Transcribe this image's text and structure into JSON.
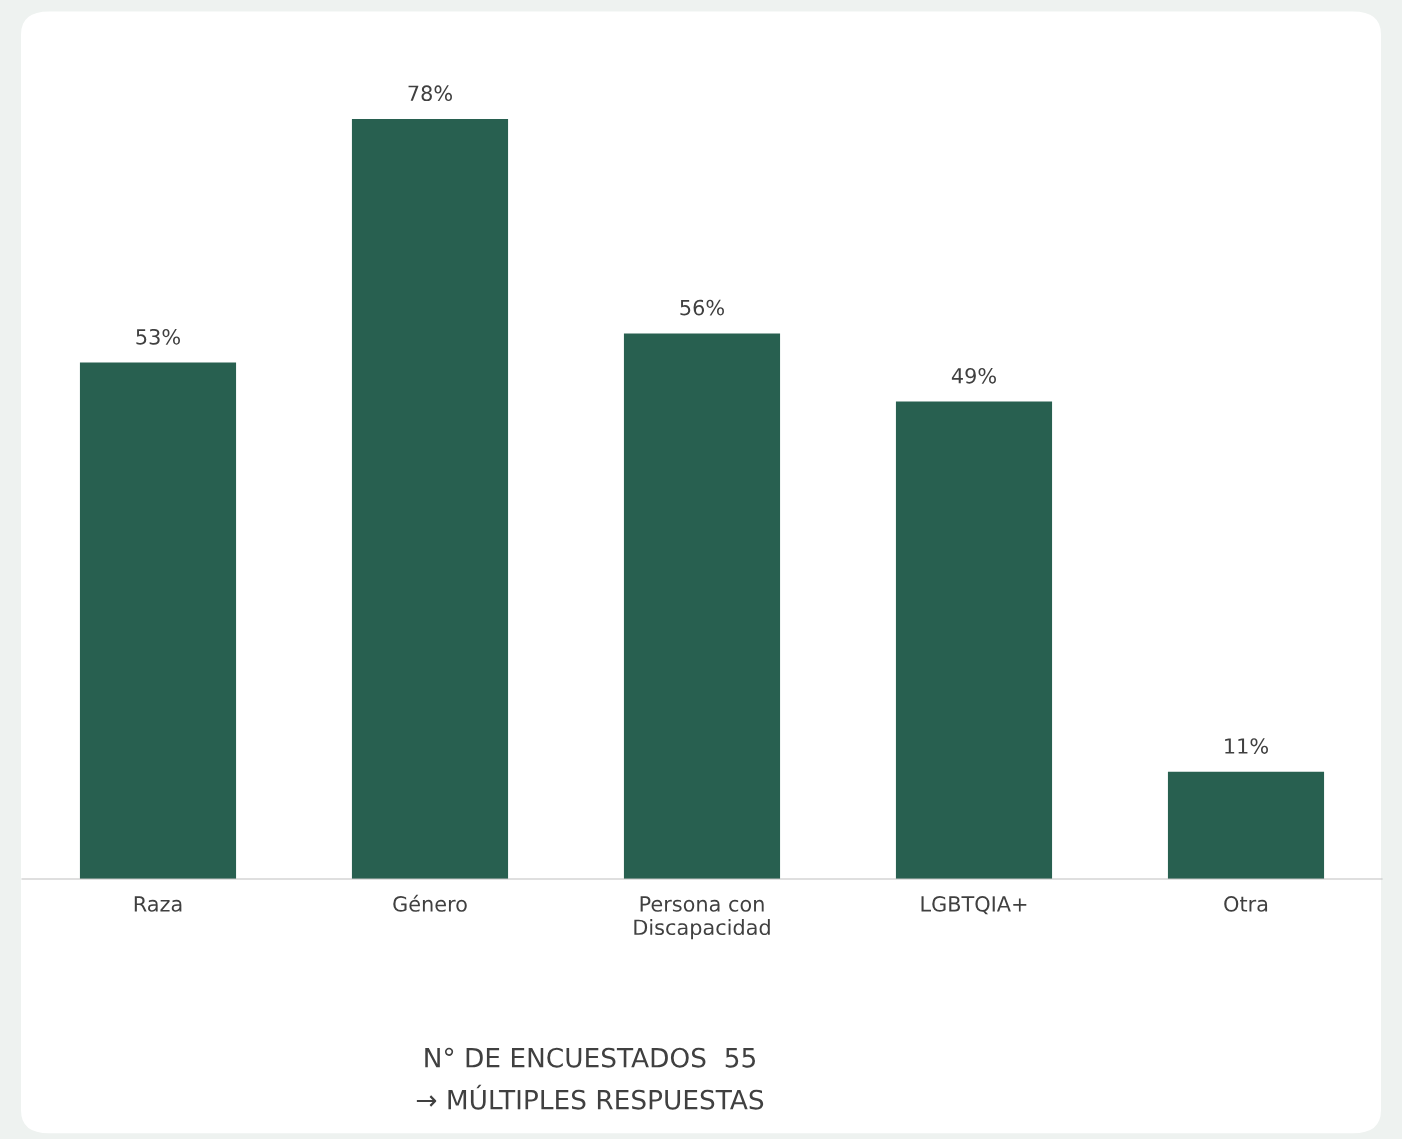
{
  "chart_data": {
    "type": "bar",
    "categories": [
      "Raza",
      "Género",
      "Persona con\nDiscapacidad",
      "LGBTQIA+",
      "Otra"
    ],
    "values": [
      53,
      78,
      56,
      49,
      11
    ],
    "value_labels": [
      "53%",
      "78%",
      "56%",
      "49%",
      "11%"
    ],
    "color": "#286050",
    "grid": false,
    "legend": false,
    "annotations": [
      "N° DE ENCUESTADOS  55",
      "→ MÚLTIPLES RESPUESTAS"
    ]
  }
}
